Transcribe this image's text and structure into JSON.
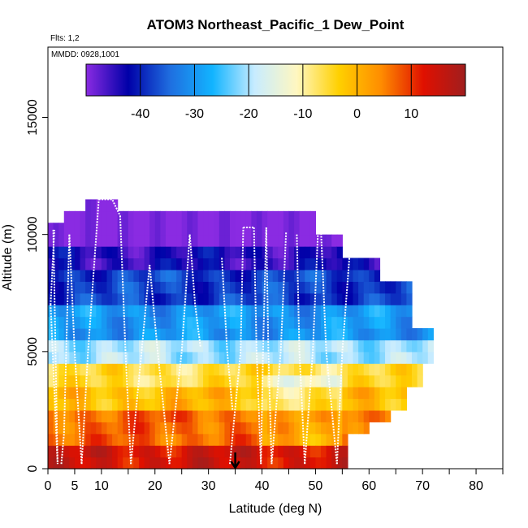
{
  "chart_data": {
    "type": "heatmap",
    "title": "ATOM3 Northeast_Pacific_1 Dew_Point",
    "flights_label": "Flts: 1,2",
    "dates_label": "MMDD: 0928,1001",
    "xlabel": "Latitude (deg N)",
    "ylabel": "Altitude (m)",
    "xlim": [
      0,
      85
    ],
    "ylim": [
      0,
      18000
    ],
    "x_ticks": [
      0,
      5,
      10,
      20,
      30,
      40,
      50,
      60,
      70,
      80
    ],
    "x_minor_ticks": [
      15,
      25,
      35,
      45,
      55,
      65,
      75,
      85
    ],
    "y_ticks": [
      0,
      5000,
      10000,
      15000
    ],
    "colorbar": {
      "ticks": [
        -40,
        -30,
        -20,
        -10,
        0,
        10
      ],
      "range": [
        -50,
        20
      ],
      "colors": [
        "#8a2be2",
        "#0000a8",
        "#1f6fe0",
        "#12b4ff",
        "#c8ecff",
        "#fff7c0",
        "#ffd000",
        "#ff8c00",
        "#e01000",
        "#a01e1e"
      ]
    },
    "marker": {
      "x": 35,
      "y": 0
    },
    "profiles": [
      {
        "lat": [
          0.5,
          1.2
        ],
        "alt": [
          7000,
          10200
        ]
      },
      {
        "lat": [
          1.0,
          1.8,
          0.5
        ],
        "alt": [
          10200,
          200,
          7000
        ]
      },
      {
        "lat": [
          2.5,
          3.0,
          4.0
        ],
        "alt": [
          200,
          1500,
          10000
        ]
      },
      {
        "lat": [
          4.0,
          5.0,
          6.3
        ],
        "alt": [
          10000,
          5000,
          200
        ]
      },
      {
        "lat": [
          6.3,
          7.5,
          9.5
        ],
        "alt": [
          200,
          5000,
          11500
        ]
      },
      {
        "lat": [
          9.5,
          12.0,
          13.5
        ],
        "alt": [
          11500,
          11500,
          10800
        ]
      },
      {
        "lat": [
          13.5,
          14.5,
          15.5
        ],
        "alt": [
          10800,
          5000,
          200
        ]
      },
      {
        "lat": [
          15.5,
          17.5,
          19.0
        ],
        "alt": [
          200,
          5000,
          8700
        ]
      },
      {
        "lat": [
          19.0,
          20.5,
          22.7
        ],
        "alt": [
          8700,
          5000,
          200
        ]
      },
      {
        "lat": [
          22.7,
          25.0,
          26.5
        ],
        "alt": [
          200,
          5000,
          10000
        ]
      },
      {
        "lat": [
          26.5,
          27.5,
          28.5
        ],
        "alt": [
          10000,
          7000,
          5200
        ]
      },
      {
        "lat": [
          32.5,
          33.5,
          34.5
        ],
        "alt": [
          9000,
          5000,
          2500
        ]
      },
      {
        "lat": [
          34.0,
          36.0,
          36.5
        ],
        "alt": [
          200,
          5000,
          10300
        ]
      },
      {
        "lat": [
          36.5,
          38.5
        ],
        "alt": [
          10300,
          10300
        ]
      },
      {
        "lat": [
          38.5,
          39.0,
          39.8
        ],
        "alt": [
          10300,
          5000,
          200
        ]
      },
      {
        "lat": [
          39.8,
          40.2,
          40.8
        ],
        "alt": [
          200,
          5000,
          10300
        ]
      },
      {
        "lat": [
          40.8,
          41.2,
          41.8
        ],
        "alt": [
          10300,
          5000,
          200
        ]
      },
      {
        "lat": [
          41.8,
          43.5,
          44.5
        ],
        "alt": [
          200,
          5000,
          10100
        ]
      },
      {
        "lat": [
          46.5,
          47.0,
          48.0
        ],
        "alt": [
          10000,
          5000,
          200
        ]
      },
      {
        "lat": [
          48.0,
          49.5,
          50.5
        ],
        "alt": [
          200,
          5000,
          10300
        ]
      },
      {
        "lat": [
          51.0,
          52.0,
          54.0
        ],
        "alt": [
          10300,
          5000,
          200
        ]
      },
      {
        "lat": [
          54.0,
          55.0,
          56.5
        ],
        "alt": [
          200,
          5000,
          9500
        ]
      }
    ]
  }
}
